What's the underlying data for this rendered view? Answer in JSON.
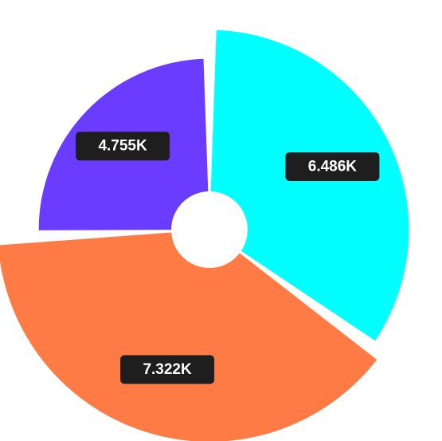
{
  "chart_data": {
    "type": "pie",
    "style": "rose-with-hole",
    "legend": "none",
    "slices": [
      {
        "value": 6486,
        "label": "6.486K",
        "color": "#00ffff"
      },
      {
        "value": 7322,
        "label": "7.322K",
        "color": "#ff7b45"
      },
      {
        "value": 4755,
        "label": "4.755K",
        "color": "#6a3cff"
      }
    ]
  }
}
